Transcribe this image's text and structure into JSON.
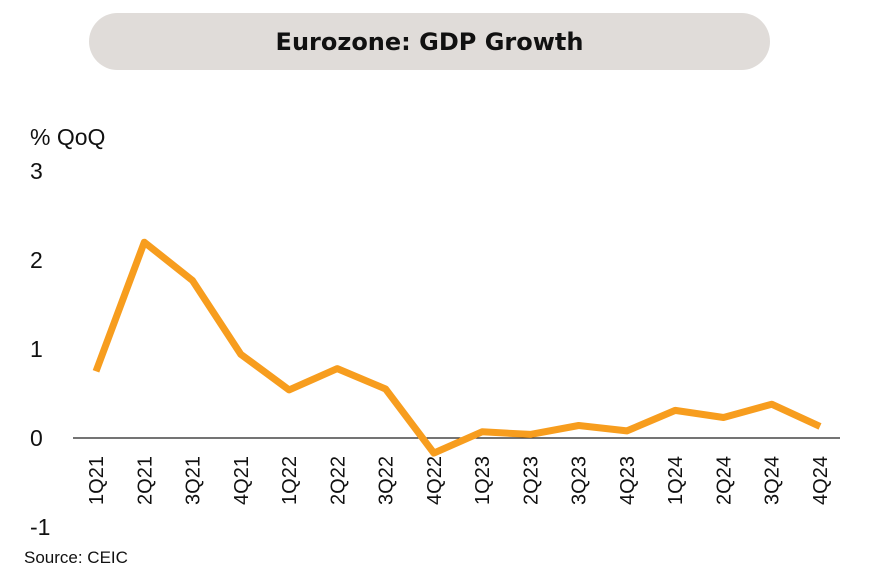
{
  "header": {
    "title": "Eurozone: GDP Growth"
  },
  "footer": {
    "source": "Source: CEIC"
  },
  "chart_data": {
    "type": "line",
    "title": "Eurozone: GDP Growth",
    "ylabel": "% QoQ",
    "xlabel": "",
    "categories": [
      "1Q21",
      "2Q21",
      "3Q21",
      "4Q21",
      "1Q22",
      "2Q22",
      "3Q22",
      "4Q22",
      "1Q23",
      "2Q23",
      "3Q23",
      "4Q23",
      "1Q24",
      "2Q24",
      "3Q24",
      "4Q24"
    ],
    "series": [
      {
        "values": [
          0.75,
          2.2,
          1.77,
          0.94,
          0.54,
          0.78,
          0.55,
          -0.17,
          0.07,
          0.04,
          0.14,
          0.08,
          0.31,
          0.23,
          0.38,
          0.13
        ],
        "color": "#f79d1e"
      }
    ],
    "ylim": [
      -1,
      3
    ],
    "yticks": [
      "-1",
      "0",
      "1",
      "2",
      "3"
    ],
    "grid": false,
    "zero_line": true,
    "legend": "none"
  }
}
